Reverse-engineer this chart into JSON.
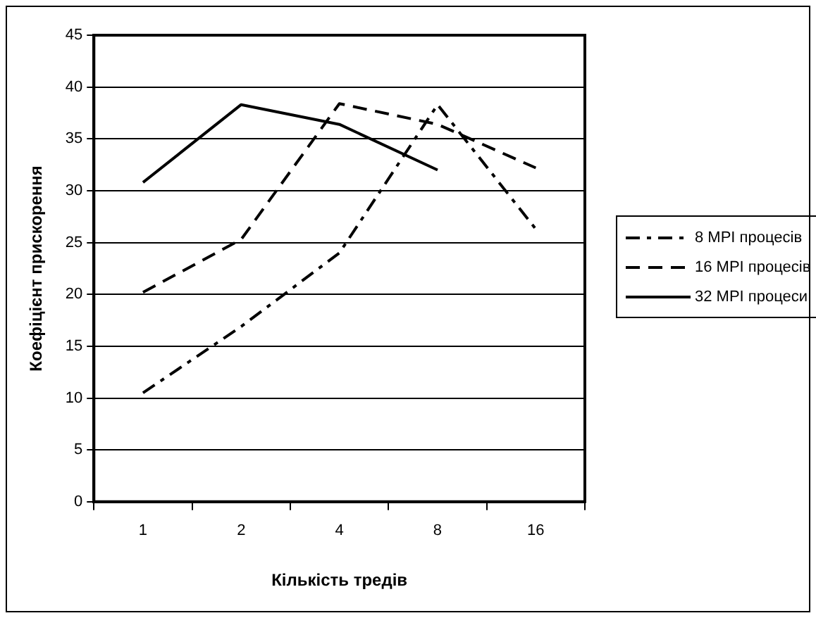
{
  "chart_data": {
    "type": "line",
    "xlabel": "Кількість тредів",
    "ylabel": "Коефіцієнт прискорення",
    "categories": [
      "1",
      "2",
      "4",
      "8",
      "16"
    ],
    "series": [
      {
        "name": "8 MPI процесів",
        "color": "#000000",
        "line_style": "dashdot",
        "values": [
          10.5,
          16.9,
          24.0,
          38.3,
          26.3
        ]
      },
      {
        "name": "16 MPI процесів",
        "color": "#000000",
        "line_style": "dashed",
        "values": [
          20.2,
          25.3,
          38.4,
          36.4,
          32.2
        ]
      },
      {
        "name": "32 MPI процеси",
        "color": "#000000",
        "line_style": "solid",
        "values": [
          30.8,
          38.3,
          36.4,
          32.0,
          null
        ]
      }
    ],
    "ylim": [
      0,
      45
    ],
    "yticks": [
      0,
      5,
      10,
      15,
      20,
      25,
      30,
      35,
      40,
      45
    ],
    "grid": "y",
    "legend": "right",
    "marker": "none"
  }
}
